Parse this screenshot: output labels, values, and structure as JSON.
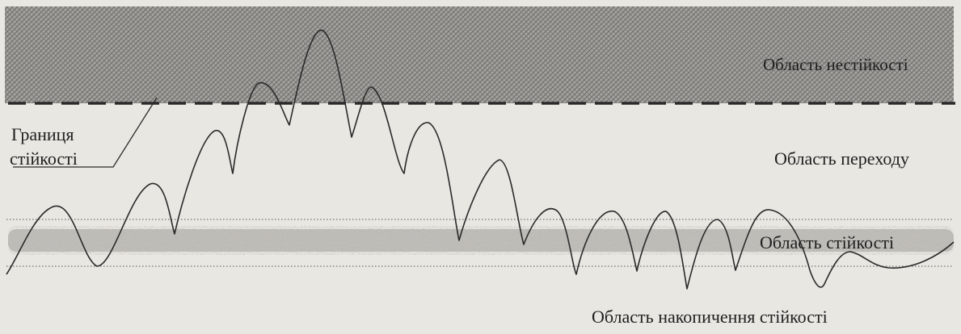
{
  "labels": {
    "instability_region": "Область нестійкості",
    "stability_boundary_line1": "Границя",
    "stability_boundary_line2": "стійкості",
    "transition_region": "Область переходу",
    "stability_region": "Область стійкості",
    "accumulation_region": "Область накопичення стійкості"
  },
  "colors": {
    "instability_fill": "#8f8d89",
    "stability_band": "#9a9893",
    "curve": "#2a2a2a",
    "text": "#1e1e1e",
    "background": "#e9e7e2"
  }
}
